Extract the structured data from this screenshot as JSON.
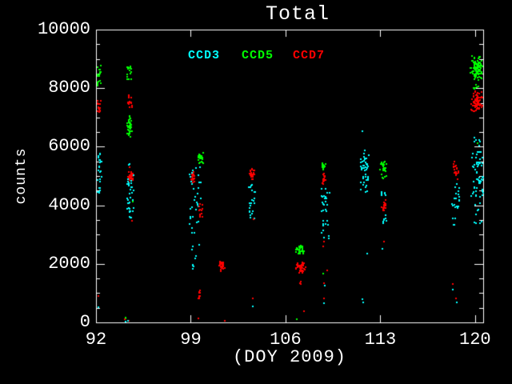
{
  "colors": {
    "background": "#000000",
    "axis": "#ffffff",
    "ccd3": "#00ffff",
    "ccd5": "#00ff00",
    "ccd7": "#ff0000"
  },
  "chart_data": {
    "type": "scatter",
    "title": "Total",
    "xlabel": "(DOY 2009)",
    "ylabel": "counts",
    "xlim": [
      92,
      120.6
    ],
    "ylim": [
      0,
      10000
    ],
    "x_ticks": [
      92,
      99,
      106,
      113,
      120
    ],
    "y_ticks": [
      0,
      2000,
      4000,
      6000,
      8000,
      10000
    ],
    "y_minor_interval": 500,
    "grid": false,
    "legend_position": "top-inside",
    "legend": [
      {
        "label": "CCD3",
        "color": "#00ffff"
      },
      {
        "label": "CCD5",
        "color": "#00ff00"
      },
      {
        "label": "CCD7",
        "color": "#ff0000"
      }
    ],
    "clusters": [
      {
        "s": "CCD5",
        "d": [
          92.0,
          92.3
        ],
        "c": [
          8100,
          8900
        ],
        "n": 22,
        "k": "spread"
      },
      {
        "s": "CCD7",
        "d": [
          92.0,
          92.3
        ],
        "c": [
          7200,
          7700
        ],
        "n": 16,
        "k": "spread"
      },
      {
        "s": "CCD3",
        "d": [
          92.0,
          92.35
        ],
        "c": [
          4400,
          5800
        ],
        "n": 28,
        "k": "spread"
      },
      {
        "s": "CCD7",
        "d": [
          92.1,
          92.1
        ],
        "c": [
          920,
          920
        ],
        "n": 1,
        "k": "point"
      },
      {
        "s": "CCD3",
        "d": [
          92.1,
          92.1
        ],
        "c": [
          560,
          560
        ],
        "n": 1,
        "k": "point"
      },
      {
        "s": "CCD5",
        "d": [
          94.25,
          94.55
        ],
        "c": [
          8300,
          8800
        ],
        "n": 18,
        "k": "spread"
      },
      {
        "s": "CCD7",
        "d": [
          94.3,
          94.6
        ],
        "c": [
          7300,
          7800
        ],
        "n": 14,
        "k": "spread"
      },
      {
        "s": "CCD5",
        "d": [
          94.2,
          94.6
        ],
        "c": [
          6300,
          7100
        ],
        "n": 45,
        "k": "dense"
      },
      {
        "s": "CCD7",
        "d": [
          94.3,
          94.7
        ],
        "c": [
          4700,
          5400
        ],
        "n": 32,
        "k": "dense"
      },
      {
        "s": "CCD3",
        "d": [
          94.2,
          94.7
        ],
        "c": [
          3600,
          5500
        ],
        "n": 38,
        "k": "spread"
      },
      {
        "s": "CCD5",
        "d": [
          94.65,
          94.65
        ],
        "c": [
          4150,
          4150
        ],
        "n": 1,
        "k": "point"
      },
      {
        "s": "CCD7",
        "d": [
          94.6,
          94.6
        ],
        "c": [
          3500,
          3500
        ],
        "n": 1,
        "k": "point"
      },
      {
        "s": "CCD5",
        "d": [
          94.0,
          94.3
        ],
        "c": [
          30,
          200
        ],
        "n": 3,
        "k": "spread"
      },
      {
        "s": "CCD7",
        "d": [
          94.05,
          94.35
        ],
        "c": [
          20,
          150
        ],
        "n": 2,
        "k": "spread"
      },
      {
        "s": "CCD3",
        "d": [
          94.1,
          94.35
        ],
        "c": [
          30,
          120
        ],
        "n": 2,
        "k": "spread"
      },
      {
        "s": "CCD5",
        "d": [
          99.45,
          99.85
        ],
        "c": [
          5400,
          5900
        ],
        "n": 28,
        "k": "dense"
      },
      {
        "s": "CCD7",
        "d": [
          98.9,
          99.3
        ],
        "c": [
          4700,
          5300
        ],
        "n": 22,
        "k": "dense"
      },
      {
        "s": "CCD3",
        "d": [
          98.85,
          99.7
        ],
        "c": [
          3050,
          5450
        ],
        "n": 34,
        "k": "spread"
      },
      {
        "s": "CCD7",
        "d": [
          99.5,
          99.85
        ],
        "c": [
          3600,
          4200
        ],
        "n": 14,
        "k": "dense"
      },
      {
        "s": "CCD3",
        "d": [
          98.9,
          99.6
        ],
        "c": [
          1800,
          2750
        ],
        "n": 7,
        "k": "spread"
      },
      {
        "s": "CCD3",
        "d": [
          98.95,
          99.2
        ],
        "c": [
          1930,
          2000
        ],
        "n": 2,
        "k": "spread"
      },
      {
        "s": "CCD7",
        "d": [
          99.45,
          99.7
        ],
        "c": [
          760,
          1150
        ],
        "n": 10,
        "k": "dense"
      },
      {
        "s": "CCD7",
        "d": [
          99.5,
          99.5
        ],
        "c": [
          170,
          170
        ],
        "n": 1,
        "k": "point"
      },
      {
        "s": "CCD7",
        "d": [
          101.05,
          101.45
        ],
        "c": [
          1740,
          2170
        ],
        "n": 31,
        "k": "dense"
      },
      {
        "s": "CCD7",
        "d": [
          101.45,
          101.45
        ],
        "c": [
          80,
          80
        ],
        "n": 1,
        "k": "point"
      },
      {
        "s": "CCD7",
        "d": [
          103.25,
          103.65
        ],
        "c": [
          4850,
          5320
        ],
        "n": 24,
        "k": "dense"
      },
      {
        "s": "CCD3",
        "d": [
          103.25,
          103.7
        ],
        "c": [
          3480,
          4820
        ],
        "n": 24,
        "k": "spread"
      },
      {
        "s": "CCD7",
        "d": [
          103.6,
          103.6
        ],
        "c": [
          3550,
          3550
        ],
        "n": 1,
        "k": "point"
      },
      {
        "s": "CCD7",
        "d": [
          103.5,
          103.5
        ],
        "c": [
          860,
          860
        ],
        "n": 1,
        "k": "point"
      },
      {
        "s": "CCD3",
        "d": [
          103.55,
          103.55
        ],
        "c": [
          580,
          580
        ],
        "n": 1,
        "k": "point"
      },
      {
        "s": "CCD5",
        "d": [
          106.65,
          107.35
        ],
        "c": [
          2280,
          2670
        ],
        "n": 34,
        "k": "dense"
      },
      {
        "s": "CCD7",
        "d": [
          106.65,
          107.5
        ],
        "c": [
          1660,
          2110
        ],
        "n": 42,
        "k": "dense"
      },
      {
        "s": "CCD7",
        "d": [
          106.9,
          107.2
        ],
        "c": [
          1280,
          1450
        ],
        "n": 3,
        "k": "spread"
      },
      {
        "s": "CCD7",
        "d": [
          107.3,
          107.3
        ],
        "c": [
          420,
          420
        ],
        "n": 1,
        "k": "point"
      },
      {
        "s": "CCD5",
        "d": [
          106.8,
          106.8
        ],
        "c": [
          140,
          140
        ],
        "n": 1,
        "k": "point"
      },
      {
        "s": "CCD5",
        "d": [
          108.55,
          108.9
        ],
        "c": [
          5180,
          5580
        ],
        "n": 14,
        "k": "dense"
      },
      {
        "s": "CCD7",
        "d": [
          108.6,
          109.0
        ],
        "c": [
          4700,
          5170
        ],
        "n": 18,
        "k": "dense"
      },
      {
        "s": "CCD3",
        "d": [
          108.6,
          109.2
        ],
        "c": [
          2820,
          4640
        ],
        "n": 30,
        "k": "spread"
      },
      {
        "s": "CCD7",
        "d": [
          108.7,
          108.8
        ],
        "c": [
          2620,
          2810
        ],
        "n": 2,
        "k": "spread"
      },
      {
        "s": "CCD5",
        "d": [
          108.75,
          108.75
        ],
        "c": [
          1700,
          1700
        ],
        "n": 1,
        "k": "point"
      },
      {
        "s": "CCD7",
        "d": [
          109.0,
          109.0
        ],
        "c": [
          1810,
          1810
        ],
        "n": 1,
        "k": "point"
      },
      {
        "s": "CCD7",
        "d": [
          108.8,
          108.8
        ],
        "c": [
          1360,
          1360
        ],
        "n": 1,
        "k": "point"
      },
      {
        "s": "CCD3",
        "d": [
          108.85,
          108.85
        ],
        "c": [
          1290,
          1290
        ],
        "n": 1,
        "k": "point"
      },
      {
        "s": "CCD7",
        "d": [
          108.8,
          108.8
        ],
        "c": [
          860,
          860
        ],
        "n": 1,
        "k": "point"
      },
      {
        "s": "CCD3",
        "d": [
          108.8,
          108.8
        ],
        "c": [
          690,
          690
        ],
        "n": 1,
        "k": "point"
      },
      {
        "s": "CCD3",
        "d": [
          111.4,
          112.2
        ],
        "c": [
          4300,
          6100
        ],
        "n": 44,
        "k": "dense"
      },
      {
        "s": "CCD3",
        "d": [
          111.6,
          111.6
        ],
        "c": [
          6550,
          6550
        ],
        "n": 1,
        "k": "point"
      },
      {
        "s": "CCD3",
        "d": [
          112.0,
          112.0
        ],
        "c": [
          2390,
          2390
        ],
        "n": 1,
        "k": "point"
      },
      {
        "s": "CCD3",
        "d": [
          111.6,
          111.6
        ],
        "c": [
          830,
          830
        ],
        "n": 1,
        "k": "point"
      },
      {
        "s": "CCD3",
        "d": [
          111.7,
          111.7
        ],
        "c": [
          720,
          720
        ],
        "n": 1,
        "k": "point"
      },
      {
        "s": "CCD5",
        "d": [
          112.9,
          113.45
        ],
        "c": [
          4880,
          5660
        ],
        "n": 30,
        "k": "dense"
      },
      {
        "s": "CCD3",
        "d": [
          113.0,
          113.4
        ],
        "c": [
          4150,
          4500
        ],
        "n": 7,
        "k": "spread"
      },
      {
        "s": "CCD7",
        "d": [
          113.0,
          113.45
        ],
        "c": [
          3770,
          4200
        ],
        "n": 18,
        "k": "dense"
      },
      {
        "s": "CCD3",
        "d": [
          113.0,
          113.4
        ],
        "c": [
          3400,
          3760
        ],
        "n": 7,
        "k": "spread"
      },
      {
        "s": "CCD7",
        "d": [
          113.2,
          113.2
        ],
        "c": [
          2780,
          2780
        ],
        "n": 1,
        "k": "point"
      },
      {
        "s": "CCD3",
        "d": [
          113.1,
          113.1
        ],
        "c": [
          2530,
          2530
        ],
        "n": 1,
        "k": "point"
      },
      {
        "s": "CCD7",
        "d": [
          118.25,
          118.75
        ],
        "c": [
          4880,
          5590
        ],
        "n": 20,
        "k": "dense"
      },
      {
        "s": "CCD3",
        "d": [
          118.2,
          118.8
        ],
        "c": [
          3880,
          4810
        ],
        "n": 18,
        "k": "spread"
      },
      {
        "s": "CCD3",
        "d": [
          118.3,
          118.5
        ],
        "c": [
          3350,
          3720
        ],
        "n": 4,
        "k": "spread"
      },
      {
        "s": "CCD7",
        "d": [
          118.3,
          118.3
        ],
        "c": [
          1330,
          1330
        ],
        "n": 1,
        "k": "point"
      },
      {
        "s": "CCD3",
        "d": [
          118.3,
          118.3
        ],
        "c": [
          1140,
          1140
        ],
        "n": 1,
        "k": "point"
      },
      {
        "s": "CCD7",
        "d": [
          118.55,
          118.55
        ],
        "c": [
          860,
          860
        ],
        "n": 1,
        "k": "point"
      },
      {
        "s": "CCD3",
        "d": [
          118.6,
          118.6
        ],
        "c": [
          700,
          700
        ],
        "n": 1,
        "k": "point"
      },
      {
        "s": "CCD5",
        "d": [
          119.5,
          120.6
        ],
        "c": [
          8230,
          9260
        ],
        "n": 90,
        "k": "dense"
      },
      {
        "s": "CCD5",
        "d": [
          119.6,
          120.2
        ],
        "c": [
          7980,
          8200
        ],
        "n": 6,
        "k": "spread"
      },
      {
        "s": "CCD7",
        "d": [
          119.6,
          120.6
        ],
        "c": [
          7210,
          7960
        ],
        "n": 80,
        "k": "dense"
      },
      {
        "s": "CCD3",
        "d": [
          119.9,
          120.5
        ],
        "c": [
          6040,
          6360
        ],
        "n": 6,
        "k": "spread"
      },
      {
        "s": "CCD5",
        "d": [
          120.1,
          120.1
        ],
        "c": [
          6150,
          6150
        ],
        "n": 1,
        "k": "point"
      },
      {
        "s": "CCD3",
        "d": [
          119.6,
          120.6
        ],
        "c": [
          4300,
          5860
        ],
        "n": 58,
        "k": "spread"
      },
      {
        "s": "CCD3",
        "d": [
          119.7,
          120.55
        ],
        "c": [
          3350,
          4150
        ],
        "n": 9,
        "k": "spread"
      }
    ]
  }
}
